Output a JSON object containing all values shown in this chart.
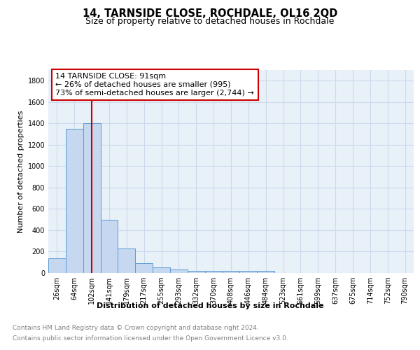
{
  "title": "14, TARNSIDE CLOSE, ROCHDALE, OL16 2QD",
  "subtitle": "Size of property relative to detached houses in Rochdale",
  "xlabel": "Distribution of detached houses by size in Rochdale",
  "ylabel": "Number of detached properties",
  "footnote1": "Contains HM Land Registry data © Crown copyright and database right 2024.",
  "footnote2": "Contains public sector information licensed under the Open Government Licence v3.0.",
  "bar_labels": [
    "26sqm",
    "64sqm",
    "102sqm",
    "141sqm",
    "179sqm",
    "217sqm",
    "255sqm",
    "293sqm",
    "332sqm",
    "370sqm",
    "408sqm",
    "446sqm",
    "484sqm",
    "523sqm",
    "561sqm",
    "599sqm",
    "637sqm",
    "675sqm",
    "714sqm",
    "752sqm",
    "790sqm"
  ],
  "bar_values": [
    140,
    1350,
    1400,
    500,
    230,
    90,
    50,
    30,
    20,
    20,
    20,
    20,
    20,
    0,
    0,
    0,
    0,
    0,
    0,
    0,
    0
  ],
  "bar_color": "#c5d8f0",
  "bar_edge_color": "#5b9bd5",
  "property_line_x": 2.0,
  "property_line_color": "#cc0000",
  "annotation_text": "14 TARNSIDE CLOSE: 91sqm\n← 26% of detached houses are smaller (995)\n73% of semi-detached houses are larger (2,744) →",
  "annotation_box_color": "#cc0000",
  "ylim": [
    0,
    1900
  ],
  "yticks": [
    0,
    200,
    400,
    600,
    800,
    1000,
    1200,
    1400,
    1600,
    1800
  ],
  "grid_color": "#cddaec",
  "background_color": "#e8f0f8",
  "title_fontsize": 10.5,
  "subtitle_fontsize": 9,
  "axis_label_fontsize": 8,
  "ylabel_fontsize": 8,
  "tick_fontsize": 7,
  "footnote_fontsize": 6.5,
  "footnote_color": "#808080"
}
